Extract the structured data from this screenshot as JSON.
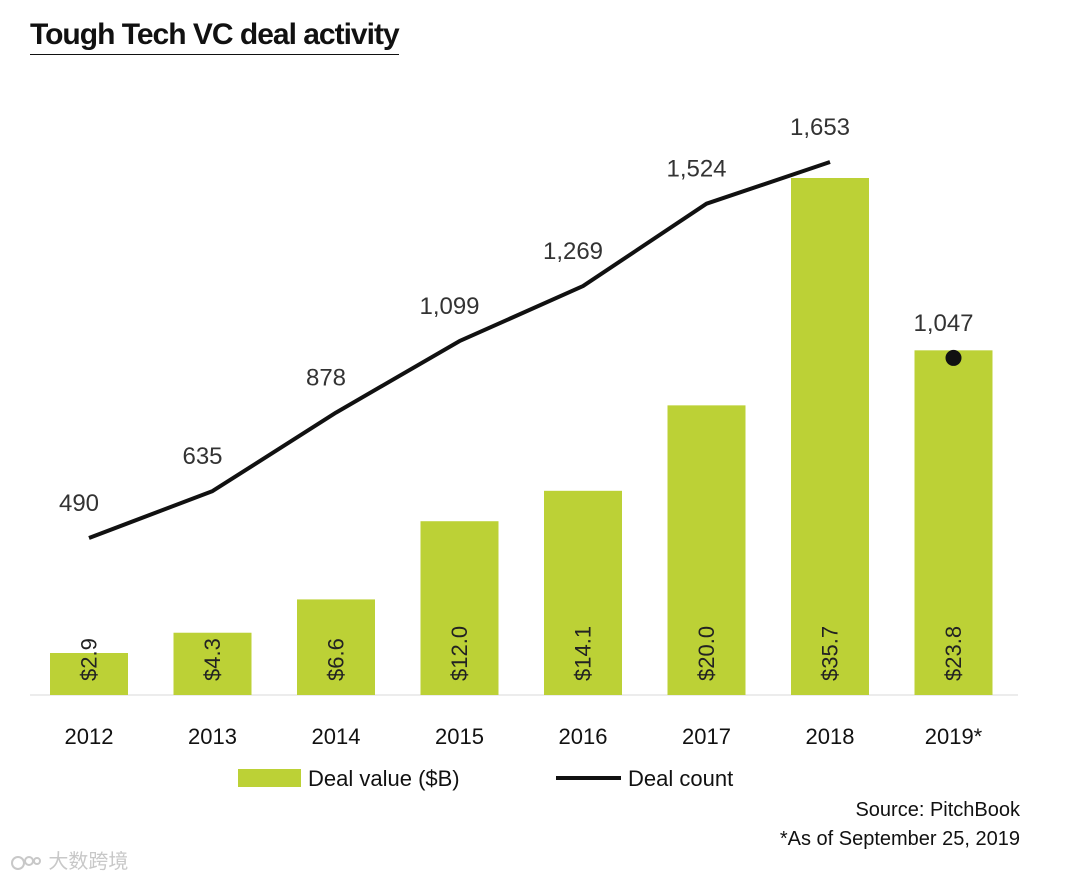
{
  "title": "Tough Tech VC deal activity",
  "colors": {
    "bar": "#bcd136",
    "line": "#111111"
  },
  "legend": {
    "bar_label": "Deal value ($B)",
    "line_label": "Deal count"
  },
  "source": {
    "line1": "Source: PitchBook",
    "line2": "*As of September 25, 2019"
  },
  "watermark": {
    "text": "大数跨境"
  },
  "chart_data": {
    "type": "bar",
    "categories": [
      "2012",
      "2013",
      "2014",
      "2015",
      "2016",
      "2017",
      "2018",
      "2019*"
    ],
    "series": [
      {
        "name": "Deal value ($B)",
        "type": "bar",
        "values": [
          2.9,
          4.3,
          6.6,
          12.0,
          14.1,
          20.0,
          35.7,
          23.8
        ],
        "labels": [
          "$2.9",
          "$4.3",
          "$6.6",
          "$12.0",
          "$14.1",
          "$20.0",
          "$35.7",
          "$23.8"
        ]
      },
      {
        "name": "Deal count",
        "type": "line",
        "values": [
          490,
          635,
          878,
          1099,
          1269,
          1524,
          1653,
          1047
        ],
        "labels": [
          "490",
          "635",
          "878",
          "1,099",
          "1,269",
          "1,524",
          "1,653",
          "1,047"
        ]
      }
    ],
    "legend_position": "bottom",
    "grid": false
  }
}
